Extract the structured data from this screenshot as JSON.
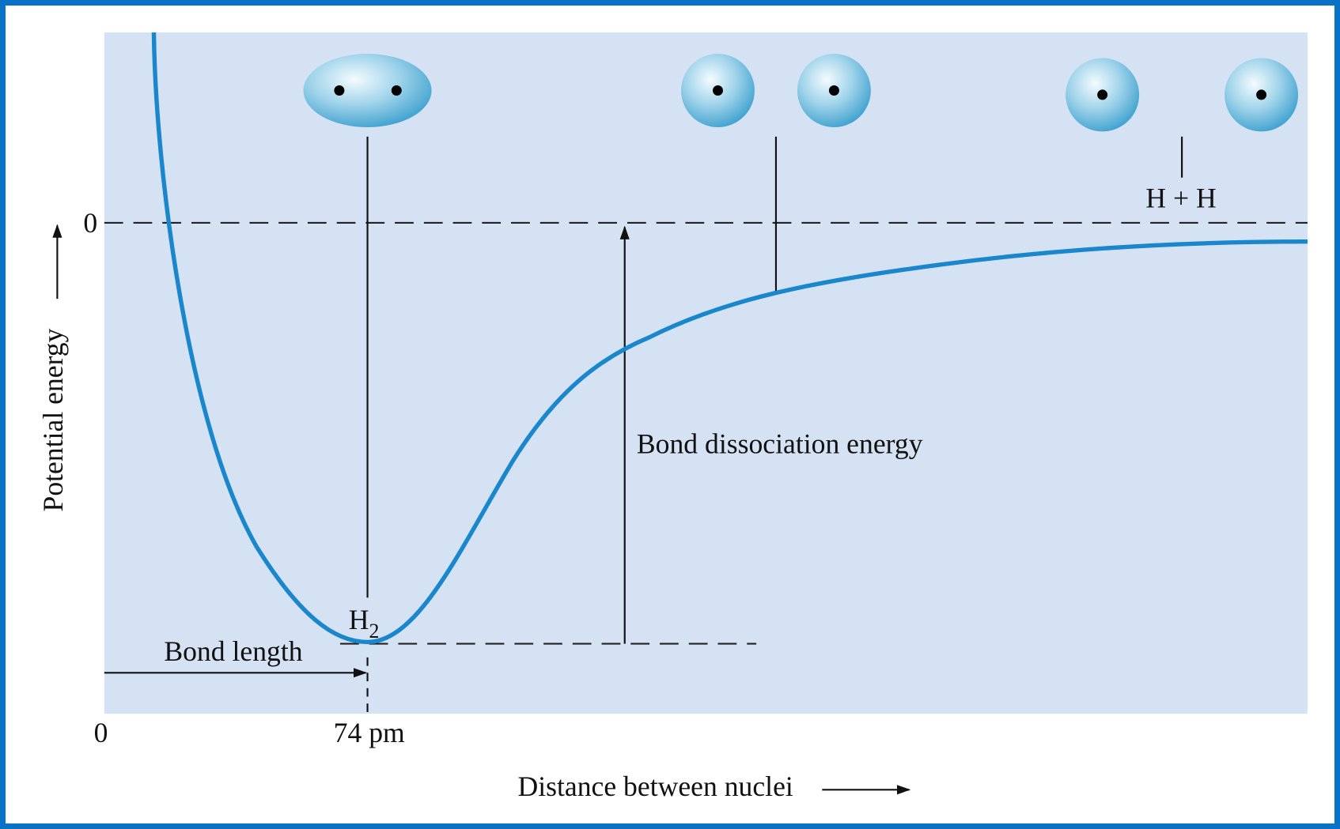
{
  "axes": {
    "y_label": "Potential energy",
    "y_zero": "0",
    "x_zero": "0",
    "x_mark": "74 pm",
    "x_label": "Distance between nuclei"
  },
  "annotations": {
    "bond_length": "Bond length",
    "bond_dissociation_energy": "Bond dissociation energy",
    "separated_atoms": "H + H",
    "molecule": {
      "base": "H",
      "sub": "2"
    }
  }
}
